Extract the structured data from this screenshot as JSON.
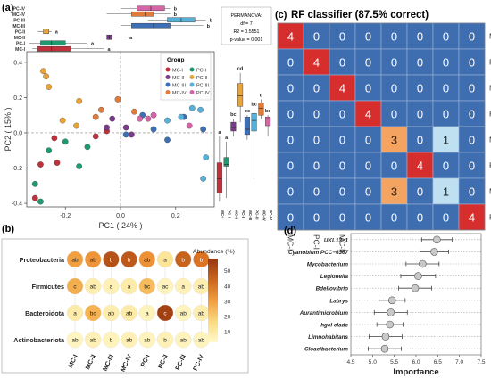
{
  "colors": {
    "MC-I": "#c0313c",
    "PC-I": "#1f9a6e",
    "MC-II": "#7b3a8c",
    "PC-II": "#e8a43a",
    "MC-III": "#3d6fb6",
    "PC-III": "#57b0d8",
    "MC-IV": "#e07b39",
    "PC-IV": "#d565a6",
    "rf_blue": "#3e6db0",
    "rf_red": "#d62d2d",
    "rf_orange": "#f4a460",
    "rf_lightblue": "#bfe0f0"
  },
  "chart_data": [
    {
      "panel_label": "(a)",
      "type": "scatter",
      "xlabel": "PC1 ( 24% )",
      "ylabel": "PC2 ( 15% )",
      "xticks": [
        -0.2,
        0.0,
        0.2
      ],
      "yticks": [
        -0.4,
        -0.2,
        0.0,
        0.2,
        0.4
      ],
      "xlim": [
        -0.34,
        0.34
      ],
      "ylim": [
        -0.42,
        0.46
      ],
      "legend_title": "Group",
      "legend": [
        "MC-I",
        "PC-I",
        "MC-II",
        "PC-II",
        "MC-III",
        "PC-III",
        "MC-IV",
        "PC-IV"
      ],
      "stats": {
        "title": "PERMANOVA:",
        "df": "df = 7",
        "r2": "R2 = 0.5551",
        "p": "p-value = 0.001"
      },
      "series": [
        {
          "name": "MC-I",
          "points": [
            [
              -0.31,
              -0.37
            ],
            [
              -0.29,
              -0.18
            ],
            [
              -0.24,
              -0.03
            ],
            [
              -0.23,
              -0.17
            ],
            [
              -0.09,
              -0.02
            ],
            [
              -0.05,
              0.01
            ]
          ]
        },
        {
          "name": "PC-I",
          "points": [
            [
              -0.31,
              -0.29
            ],
            [
              -0.29,
              -0.39
            ],
            [
              -0.26,
              -0.1
            ],
            [
              -0.2,
              -0.05
            ],
            [
              -0.15,
              -0.19
            ],
            [
              -0.12,
              -0.08
            ]
          ]
        },
        {
          "name": "MC-II",
          "points": [
            [
              -0.05,
              0.03
            ],
            [
              -0.03,
              0.08
            ],
            [
              0.02,
              0.03
            ],
            [
              0.04,
              -0.01
            ]
          ]
        },
        {
          "name": "PC-II",
          "points": [
            [
              -0.28,
              0.35
            ],
            [
              -0.27,
              0.32
            ],
            [
              -0.26,
              0.26
            ],
            [
              -0.21,
              0.07
            ],
            [
              -0.16,
              0.04
            ],
            [
              -0.15,
              0.18
            ]
          ]
        },
        {
          "name": "MC-III",
          "points": [
            [
              0.02,
              -0.01
            ],
            [
              0.08,
              0.1
            ],
            [
              0.12,
              0.02
            ],
            [
              0.17,
              -0.04
            ],
            [
              0.23,
              0.09
            ],
            [
              0.3,
              0.02
            ]
          ]
        },
        {
          "name": "PC-III",
          "points": [
            [
              0.17,
              0.07
            ],
            [
              0.22,
              0.09
            ],
            [
              0.26,
              0.14
            ],
            [
              0.29,
              0.13
            ],
            [
              0.31,
              -0.14
            ],
            [
              0.3,
              -0.26
            ]
          ]
        },
        {
          "name": "MC-IV",
          "points": [
            [
              -0.09,
              0.09
            ],
            [
              -0.07,
              0.13
            ],
            [
              -0.01,
              0.19
            ],
            [
              0.05,
              0.12
            ]
          ]
        },
        {
          "name": "PC-IV",
          "points": [
            [
              0.07,
              0.08
            ],
            [
              0.1,
              0.08
            ],
            [
              0.12,
              0.1
            ],
            [
              0.25,
              0.04
            ]
          ]
        }
      ],
      "top_boxplot": {
        "categories": [
          "PC-IV",
          "MC-IV",
          "PC-III",
          "MC-III",
          "PC-II",
          "MC-II",
          "PC-I",
          "MC-I"
        ],
        "letters": [
          "b",
          "b",
          "b",
          "b",
          "a",
          "a",
          "a",
          "a"
        ],
        "boxes": [
          [
            0.0,
            0.06,
            0.11,
            0.16,
            0.18
          ],
          [
            -0.05,
            0.04,
            0.09,
            0.12,
            0.18
          ],
          [
            0.1,
            0.17,
            0.22,
            0.27,
            0.31
          ],
          [
            0.0,
            0.04,
            0.12,
            0.18,
            0.3
          ],
          [
            -0.3,
            -0.28,
            -0.27,
            -0.26,
            -0.25
          ],
          [
            -0.06,
            -0.05,
            -0.04,
            -0.03,
            0.02
          ],
          [
            -0.33,
            -0.29,
            -0.25,
            -0.2,
            -0.12
          ],
          [
            -0.32,
            -0.3,
            -0.25,
            -0.18,
            -0.06
          ]
        ]
      },
      "right_boxplot": {
        "categories": [
          "MC-I",
          "PC-I",
          "MC-II",
          "PC-II",
          "MC-III",
          "PC-III",
          "MC-IV",
          "PC-IV"
        ],
        "letters": [
          "a",
          "a",
          "bc",
          "cd",
          "bc",
          "bc",
          "d",
          "bc"
        ],
        "boxes": [
          [
            -0.39,
            -0.34,
            -0.26,
            -0.17,
            -0.02
          ],
          [
            -0.37,
            -0.19,
            -0.18,
            -0.14,
            -0.05
          ],
          [
            -0.02,
            0.01,
            0.03,
            0.06,
            0.08
          ],
          [
            0.06,
            0.15,
            0.21,
            0.28,
            0.34
          ],
          [
            -0.04,
            -0.01,
            0.02,
            0.09,
            0.1
          ],
          [
            -0.26,
            0.01,
            0.07,
            0.11,
            0.14
          ],
          [
            0.08,
            0.1,
            0.14,
            0.17,
            0.19
          ],
          [
            -0.02,
            0.04,
            0.08,
            0.09,
            0.1
          ]
        ]
      }
    },
    {
      "panel_label": "(b)",
      "type": "heatmap",
      "rows": [
        "Proteobacteria",
        "Firmicutes",
        "Bacteroidota",
        "Actinobacteriota"
      ],
      "columns": [
        "MC-I",
        "MC-II",
        "MC-III",
        "MC-IV",
        "PC-I",
        "PC-II",
        "PC-III",
        "PC-IV"
      ],
      "values": [
        [
          30,
          32,
          50,
          48,
          33,
          12,
          45,
          40
        ],
        [
          27,
          8,
          7,
          9,
          24,
          6,
          7,
          8
        ],
        [
          9,
          26,
          8,
          9,
          6,
          55,
          6,
          8
        ],
        [
          5,
          7,
          6,
          7,
          6,
          7,
          6,
          6
        ]
      ],
      "letters": [
        [
          "ab",
          "ab",
          "b",
          "b",
          "ab",
          "a",
          "b",
          "b"
        ],
        [
          "c",
          "ab",
          "a",
          "a",
          "bc",
          "ac",
          "a",
          "ab"
        ],
        [
          "a",
          "bc",
          "ab",
          "ab",
          "a",
          "c",
          "ab",
          "ab"
        ],
        [
          "ab",
          "ab",
          "b",
          "ab",
          "ab",
          "b",
          "ab",
          "ab"
        ]
      ],
      "legend_title": "Abundance (%)",
      "legend_ticks": [
        10,
        20,
        30,
        40,
        50
      ],
      "range": [
        3,
        58
      ]
    },
    {
      "panel_label": "(c)",
      "type": "table",
      "title": "RF classifier (87.5% correct)",
      "labels": [
        "MC-I",
        "PC-I",
        "MC-II",
        "PC-II",
        "MC-III",
        "PC-III",
        "MC-IV",
        "PC-IV"
      ],
      "matrix": [
        [
          4,
          0,
          0,
          0,
          0,
          0,
          0,
          0
        ],
        [
          0,
          4,
          0,
          0,
          0,
          0,
          0,
          0
        ],
        [
          0,
          0,
          4,
          0,
          0,
          0,
          0,
          0
        ],
        [
          0,
          0,
          0,
          4,
          0,
          0,
          0,
          0
        ],
        [
          0,
          0,
          0,
          0,
          3,
          0,
          1,
          0
        ],
        [
          0,
          0,
          0,
          0,
          0,
          4,
          0,
          0
        ],
        [
          0,
          0,
          0,
          0,
          3,
          0,
          1,
          0
        ],
        [
          0,
          0,
          0,
          0,
          0,
          0,
          0,
          4
        ]
      ]
    },
    {
      "panel_label": "(d)",
      "type": "scatter",
      "xlabel": "Importance",
      "xticks": [
        4.5,
        5.0,
        5.5,
        6.0,
        6.5,
        7.0,
        7.5
      ],
      "xlim": [
        4.5,
        7.5
      ],
      "features": [
        "UKL13−1",
        "Cyanobium PCC−6307",
        "Mycobacterium",
        "Legionella",
        "Bdellovibrio",
        "Labrys",
        "Aurantimicrobium",
        "hgcI clade",
        "Limnohabitans",
        "Cloacibacterium"
      ],
      "values": [
        6.48,
        6.42,
        6.15,
        6.05,
        5.98,
        5.45,
        5.42,
        5.4,
        5.3,
        5.28
      ],
      "errors": [
        0.35,
        0.33,
        0.38,
        0.4,
        0.38,
        0.3,
        0.38,
        0.3,
        0.38,
        0.38
      ]
    }
  ]
}
